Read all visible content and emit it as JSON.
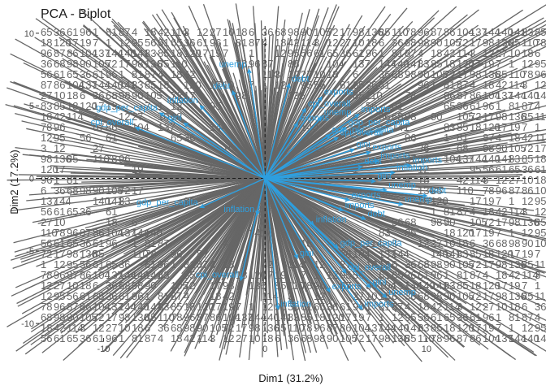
{
  "chart_data": {
    "type": "scatter",
    "title": "PCA - Biplot",
    "xlabel": "Dim1 (31.2%)",
    "ylabel": "Dim2 (17.2%)",
    "xlim": [
      -14,
      17
    ],
    "ylim": [
      -11,
      10.5
    ],
    "xticks": [
      -10,
      0,
      10
    ],
    "yticks": [
      -10,
      -5,
      0,
      5,
      10
    ],
    "reference_lines": {
      "x": 0,
      "y": 0,
      "style": "dashed"
    },
    "grid": false,
    "legend": "none",
    "colors": {
      "individuals": "#666666",
      "variables": "#2e9fdf",
      "reference": "#1a1a1a"
    },
    "individual_labels_visible": [
      "65",
      "36",
      "61",
      "96",
      "1",
      "81",
      "87",
      "4",
      "18",
      "42",
      "114",
      "3",
      "12",
      "27",
      "10",
      "18",
      "6",
      "36",
      "68",
      "98",
      "90",
      "105",
      "72",
      "17",
      "98",
      "136",
      "85",
      "110",
      "78",
      "96",
      "87",
      "86",
      "104",
      "137",
      "144",
      "140",
      "141",
      "83",
      "85",
      "18",
      "120",
      "17",
      "19",
      "7",
      "1",
      "12",
      "95",
      "56",
      "61"
    ],
    "variable_labels_visible": [
      "gdp_per_capita",
      "cpi_overall",
      "gini",
      "unemp",
      "exports",
      "imports",
      "debt",
      "inflation"
    ],
    "variables": [
      {
        "x": 5.0,
        "y": 3.5
      },
      {
        "x": 4.5,
        "y": 2.8
      },
      {
        "x": 5.5,
        "y": 2.0
      },
      {
        "x": 3.5,
        "y": 4.2
      },
      {
        "x": 6.5,
        "y": 1.8
      },
      {
        "x": 7.0,
        "y": 1.2
      },
      {
        "x": 6.0,
        "y": 0.8
      },
      {
        "x": 8.0,
        "y": 0.4
      },
      {
        "x": 4.0,
        "y": 3.0
      },
      {
        "x": 2.5,
        "y": 4.8
      },
      {
        "x": 6.8,
        "y": -0.2
      },
      {
        "x": 7.5,
        "y": -0.8
      },
      {
        "x": 5.2,
        "y": -1.5
      },
      {
        "x": 4.8,
        "y": -2.2
      },
      {
        "x": 6.2,
        "y": -2.8
      },
      {
        "x": 3.0,
        "y": -3.2
      },
      {
        "x": 4.5,
        "y": -4.8
      },
      {
        "x": 5.0,
        "y": -6.5
      },
      {
        "x": 6.5,
        "y": -7.5
      },
      {
        "x": 7.5,
        "y": -8.2
      },
      {
        "x": 4.0,
        "y": -7.8
      },
      {
        "x": 6.0,
        "y": -9.0
      },
      {
        "x": -2.0,
        "y": 6.0
      },
      {
        "x": -4.0,
        "y": 5.0
      },
      {
        "x": -6.5,
        "y": 4.5
      },
      {
        "x": -8.0,
        "y": 3.5
      },
      {
        "x": -5.0,
        "y": 3.8
      },
      {
        "x": -1.0,
        "y": 7.5
      },
      {
        "x": 2.0,
        "y": 3.8
      },
      {
        "x": 9.0,
        "y": 0.9
      },
      {
        "x": 10.0,
        "y": -1.2
      },
      {
        "x": -0.5,
        "y": -2.5
      },
      {
        "x": -4.0,
        "y": -2.0
      },
      {
        "x": -1.5,
        "y": -7.0
      },
      {
        "x": 2.0,
        "y": -5.5
      },
      {
        "x": 8.5,
        "y": -1.8
      },
      {
        "x": 3.5,
        "y": 5.6
      },
      {
        "x": 5.8,
        "y": 4.4
      },
      {
        "x": 1.5,
        "y": 6.5
      },
      {
        "x": 0.8,
        "y": -9.0
      }
    ]
  }
}
